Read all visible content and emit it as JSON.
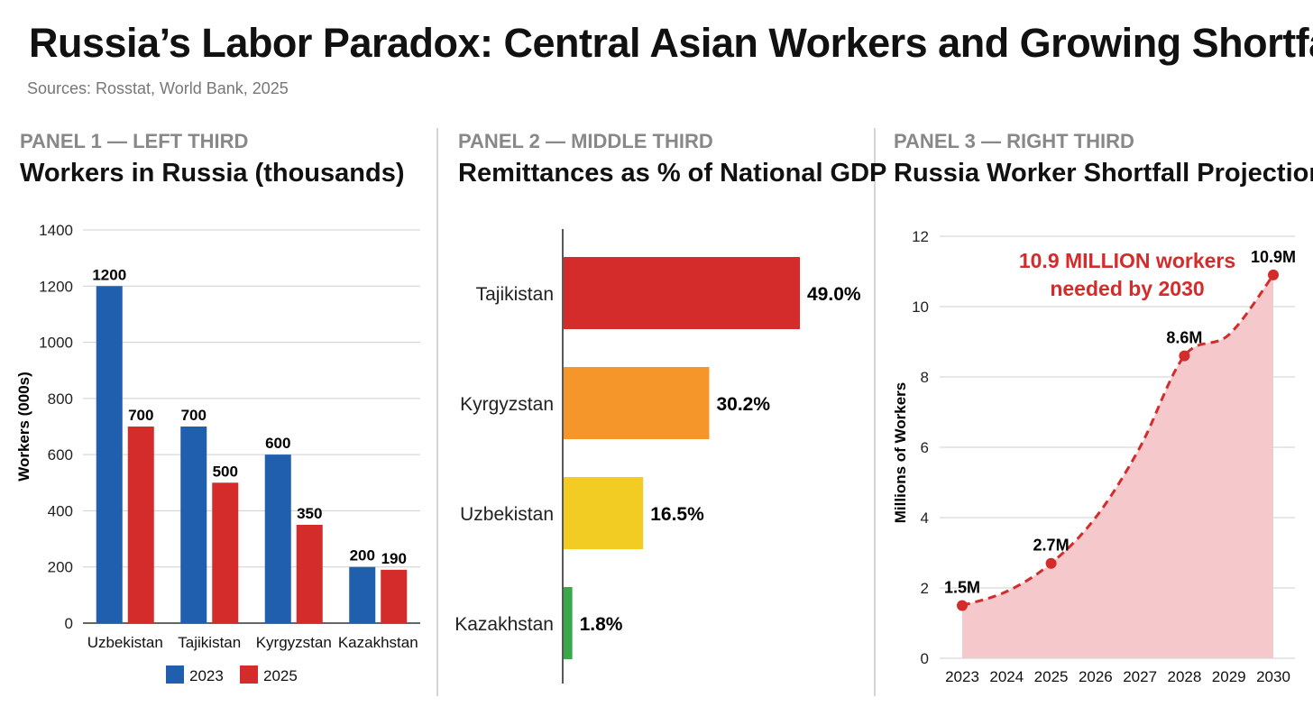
{
  "title": "Russia’s Labor Paradox: Central Asian Workers and Growing Shortfall",
  "sources": "Sources: Rosstat, World Bank, 2025",
  "panels": [
    {
      "kicker": "PANEL 1 — LEFT THIRD",
      "title": "Workers in Russia (thousands)"
    },
    {
      "kicker": "PANEL 2 — MIDDLE THIRD",
      "title": "Remittances as % of National GDP"
    },
    {
      "kicker": "PANEL 3 — RIGHT THIRD",
      "title": "Russia Worker Shortfall Projection"
    }
  ],
  "colors": {
    "blue": "#1f5fae",
    "red": "#d42b2b",
    "orange": "#f5962a",
    "yellow": "#f2cc22",
    "green": "#3aa84a",
    "area": "#f5c9cb",
    "grid": "#cfcfcf"
  },
  "chart_data": [
    {
      "type": "bar",
      "title": "Workers in Russia (thousands)",
      "categories": [
        "Uzbekistan",
        "Tajikistan",
        "Kyrgyzstan",
        "Kazakhstan"
      ],
      "series": [
        {
          "name": "2023",
          "color": "#1f5fae",
          "values": [
            1200,
            700,
            600,
            200
          ],
          "labels": [
            "1200",
            "700",
            "600",
            "200"
          ]
        },
        {
          "name": "2025",
          "color": "#d42b2b",
          "values": [
            700,
            500,
            350,
            190
          ],
          "labels": [
            "700",
            "500",
            "350",
            "190"
          ]
        }
      ],
      "ylabel": "Workers (000s)",
      "ylim": [
        0,
        1400
      ],
      "yticks": [
        0,
        200,
        400,
        600,
        800,
        1000,
        1200,
        1400
      ],
      "grid": true,
      "legend": "bottom"
    },
    {
      "type": "bar",
      "orientation": "horizontal",
      "title": "Remittances as % of National GDP",
      "categories": [
        "Tajikistan",
        "Kyrgyzstan",
        "Uzbekistan",
        "Kazakhstan"
      ],
      "values": [
        49.0,
        30.2,
        16.5,
        1.8
      ],
      "labels": [
        "49.0%",
        "30.2%",
        "16.5%",
        "1.8%"
      ],
      "colors": [
        "#d42b2b",
        "#f5962a",
        "#f2cc22",
        "#3aa84a"
      ],
      "xlim": [
        0,
        49
      ]
    },
    {
      "type": "area",
      "title": "Russia Worker Shortfall Projection",
      "x": [
        "2023",
        "2024",
        "2025",
        "2026",
        "2027",
        "2028",
        "2029",
        "2030"
      ],
      "y": [
        1.5,
        1.9,
        2.7,
        4.0,
        6.0,
        8.6,
        9.2,
        10.9
      ],
      "points": [
        {
          "x": "2023",
          "y": 1.5,
          "label": "1.5M"
        },
        {
          "x": "2025",
          "y": 2.7,
          "label": "2.7M"
        },
        {
          "x": "2028",
          "y": 8.6,
          "label": "8.6M"
        },
        {
          "x": "2030",
          "y": 10.9,
          "label": "10.9M"
        }
      ],
      "ylabel": "Millions of Workers",
      "ylim": [
        0,
        12
      ],
      "yticks": [
        0,
        2,
        4,
        6,
        8,
        10,
        12
      ],
      "annotation": [
        "10.9 MILLION workers",
        "needed by 2030"
      ],
      "grid": true
    }
  ]
}
